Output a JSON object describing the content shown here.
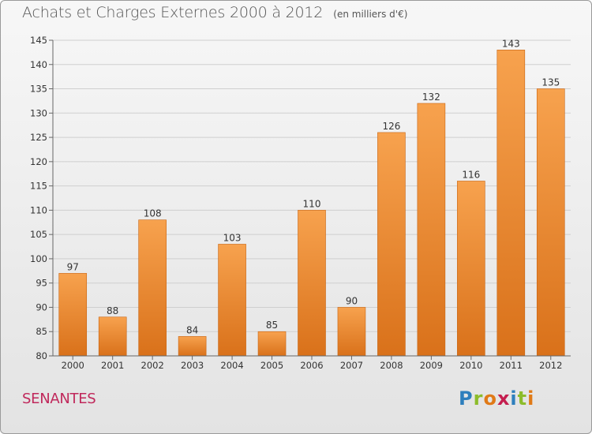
{
  "header": {
    "title": "Achats et Charges Externes 2000 à 2012",
    "subtitle": "(en milliers d'€)"
  },
  "footer": {
    "commune": "SENANTES",
    "logo_letters": [
      "P",
      "r",
      "o",
      "x",
      "i",
      "t",
      "i"
    ],
    "logo_colors": [
      "#2e7fbd",
      "#8cbc2b",
      "#e07a17",
      "#c41e4f",
      "#2e7fbd",
      "#8cbc2b",
      "#e07a17"
    ]
  },
  "colors": {
    "bar_light": "#f7a24e",
    "bar_dark": "#d9711a",
    "bar_edge": "#c86412"
  },
  "chart_data": {
    "type": "bar",
    "title": "Achats et Charges Externes 2000 à 2012",
    "subtitle": "(en milliers d'€)",
    "categories": [
      "2000",
      "2001",
      "2002",
      "2003",
      "2004",
      "2005",
      "2006",
      "2007",
      "2008",
      "2009",
      "2010",
      "2011",
      "2012"
    ],
    "values": [
      97,
      88,
      108,
      84,
      103,
      85,
      110,
      90,
      126,
      132,
      116,
      143,
      135
    ],
    "ylim": [
      80,
      145
    ],
    "yticks": [
      80,
      85,
      90,
      95,
      100,
      105,
      110,
      115,
      120,
      125,
      130,
      135,
      140,
      145
    ],
    "grid": true,
    "legend": "none"
  }
}
